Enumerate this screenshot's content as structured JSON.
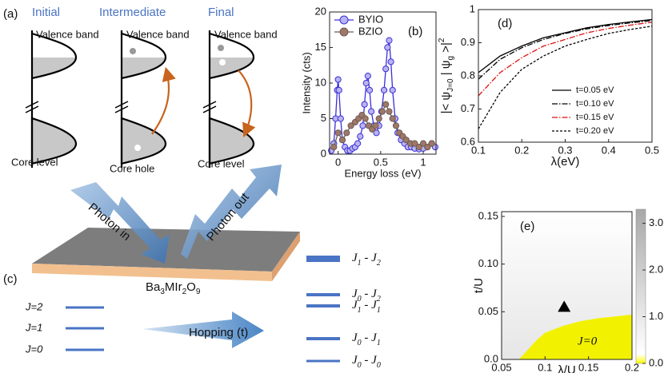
{
  "diagram_a": {
    "label": "(a)",
    "stages": [
      "Initial",
      "Intermediate",
      "Final"
    ],
    "upper": [
      "Valence band",
      "Valence band",
      "Valence band"
    ],
    "lower": [
      "Core level",
      "Core hole",
      "Core level"
    ]
  },
  "illustration": {
    "photon_in": "Photon in",
    "photon_out": "Photon out",
    "formula": [
      "Ba",
      "3",
      "MIr",
      "2",
      "O",
      "9"
    ]
  },
  "diagram_c": {
    "label": "(c)",
    "left_levels": [
      "J=2",
      "J=1",
      "J=0"
    ],
    "arrow": "Hopping (t)",
    "right_levels": [
      [
        "J",
        "1",
        " - J",
        "2"
      ],
      [
        "J",
        "0",
        " - J",
        "2"
      ],
      [
        "J",
        "1",
        " - J",
        "1"
      ],
      [
        "J",
        "0",
        " - J",
        "1"
      ],
      [
        "J",
        "0",
        " - J",
        "0"
      ]
    ]
  },
  "chart_data": [
    {
      "type": "line",
      "label": "(b)",
      "xlabel": "Energy loss (eV)",
      "ylabel": "Intensity (cts)",
      "xlim": [
        -0.1,
        1.15
      ],
      "xticks": [
        0,
        0.5,
        1
      ],
      "ylim": [
        0,
        20
      ],
      "yticks": [
        0,
        5,
        10,
        15,
        20
      ],
      "legend": "upper left",
      "series": [
        {
          "name": "BYIO",
          "color": "#3b2fd9",
          "marker_fill": "#b9b3f0",
          "x": [
            -0.08,
            -0.05,
            -0.03,
            -0.01,
            0,
            0.01,
            0.03,
            0.05,
            0.08,
            0.11,
            0.14,
            0.17,
            0.2,
            0.23,
            0.26,
            0.29,
            0.31,
            0.33,
            0.35,
            0.37,
            0.39,
            0.42,
            0.45,
            0.48,
            0.51,
            0.54,
            0.56,
            0.58,
            0.6,
            0.62,
            0.64,
            0.67,
            0.7,
            0.74,
            0.78,
            0.82,
            0.86,
            0.9,
            0.95,
            1.0,
            1.05,
            1.1,
            1.14
          ],
          "values": [
            0.5,
            1.5,
            5,
            9,
            10.5,
            9,
            5,
            2,
            1,
            0.5,
            0.5,
            0.8,
            1,
            1.5,
            2.5,
            4,
            7,
            10,
            11,
            9,
            6,
            4,
            3,
            4,
            6,
            9,
            12,
            15,
            16,
            13,
            9,
            5,
            3,
            2,
            1.5,
            1,
            1,
            0.8,
            0.7,
            0.8,
            1,
            1.5,
            1
          ]
        },
        {
          "name": "BZIO",
          "color": "#6b5a55",
          "marker_fill": "#a07868",
          "x": [
            -0.05,
            0,
            0.05,
            0.1,
            0.15,
            0.2,
            0.24,
            0.28,
            0.32,
            0.36,
            0.4,
            0.44,
            0.48,
            0.52,
            0.56,
            0.6,
            0.64,
            0.68,
            0.72,
            0.76,
            0.8,
            0.85,
            0.9,
            0.95,
            1.0,
            1.05,
            1.1
          ],
          "values": [
            1,
            3,
            2,
            3,
            4,
            4.5,
            5,
            5.5,
            5,
            4,
            3.5,
            4,
            5,
            6,
            7,
            6,
            5,
            4,
            3,
            2.5,
            2,
            1.5,
            1.5,
            1,
            1.5,
            1,
            1.5
          ]
        }
      ]
    },
    {
      "type": "line",
      "label": "(d)",
      "xlabel": "λ(eV)",
      "ylabel": [
        "|< ψ",
        "J=0",
        " | ψ",
        "g",
        " >|",
        "2"
      ],
      "xlim": [
        0.1,
        0.5
      ],
      "xticks": [
        0.1,
        0.2,
        0.3,
        0.4,
        0.5
      ],
      "ylim": [
        0.6,
        1
      ],
      "yticks": [
        0.6,
        0.7,
        0.8,
        0.9,
        1
      ],
      "legend": "lower right",
      "series": [
        {
          "name": "t=0.05 eV",
          "color": "#000000",
          "dash": "solid",
          "x": [
            0.1,
            0.15,
            0.2,
            0.25,
            0.3,
            0.35,
            0.4,
            0.45,
            0.5
          ],
          "values": [
            0.81,
            0.86,
            0.89,
            0.915,
            0.93,
            0.945,
            0.955,
            0.963,
            0.97
          ]
        },
        {
          "name": "t=0.10 eV",
          "color": "#000000",
          "dash": "dashdot",
          "x": [
            0.1,
            0.15,
            0.2,
            0.25,
            0.3,
            0.35,
            0.4,
            0.45,
            0.5
          ],
          "values": [
            0.79,
            0.85,
            0.885,
            0.91,
            0.928,
            0.942,
            0.952,
            0.96,
            0.967
          ]
        },
        {
          "name": "t=0.15 eV",
          "color": "#e01010",
          "dash": "dashdot",
          "x": [
            0.1,
            0.15,
            0.2,
            0.25,
            0.3,
            0.35,
            0.4,
            0.45,
            0.5
          ],
          "values": [
            0.74,
            0.81,
            0.855,
            0.89,
            0.91,
            0.93,
            0.943,
            0.953,
            0.962
          ]
        },
        {
          "name": "t=0.20 eV",
          "color": "#000000",
          "dash": "dashed",
          "x": [
            0.1,
            0.15,
            0.2,
            0.25,
            0.3,
            0.35,
            0.4,
            0.45,
            0.5
          ],
          "values": [
            0.64,
            0.75,
            0.82,
            0.86,
            0.89,
            0.91,
            0.928,
            0.94,
            0.95
          ]
        }
      ]
    },
    {
      "type": "heatmap",
      "label": "(e)",
      "xlabel": "λ/U",
      "ylabel": "t/U",
      "xlim": [
        0.05,
        0.2
      ],
      "xticks": [
        0.05,
        0.1,
        0.15,
        0.2
      ],
      "ylim": [
        0,
        0.155
      ],
      "yticks": [
        {
          "value": 0,
          "label": "0.0"
        },
        0.05,
        {
          "value": 0.1,
          "label": "0.10"
        },
        0.15
      ],
      "clim": [
        0,
        3.3
      ],
      "cticks": [
        {
          "value": 0,
          "label": "0.0"
        },
        {
          "value": 1,
          "label": "1.0"
        },
        {
          "value": 2,
          "label": "2.0"
        },
        {
          "value": 3,
          "label": "3.0"
        }
      ],
      "region": {
        "label": "J=0",
        "color": "#f2f200",
        "x": [
          0.07,
          0.08,
          0.09,
          0.1,
          0.12,
          0.14,
          0.16,
          0.18,
          0.2
        ],
        "y": [
          0,
          0.01,
          0.02,
          0.028,
          0.035,
          0.04,
          0.043,
          0.045,
          0.047
        ]
      },
      "marker": {
        "x": 0.122,
        "y": 0.055
      }
    }
  ]
}
